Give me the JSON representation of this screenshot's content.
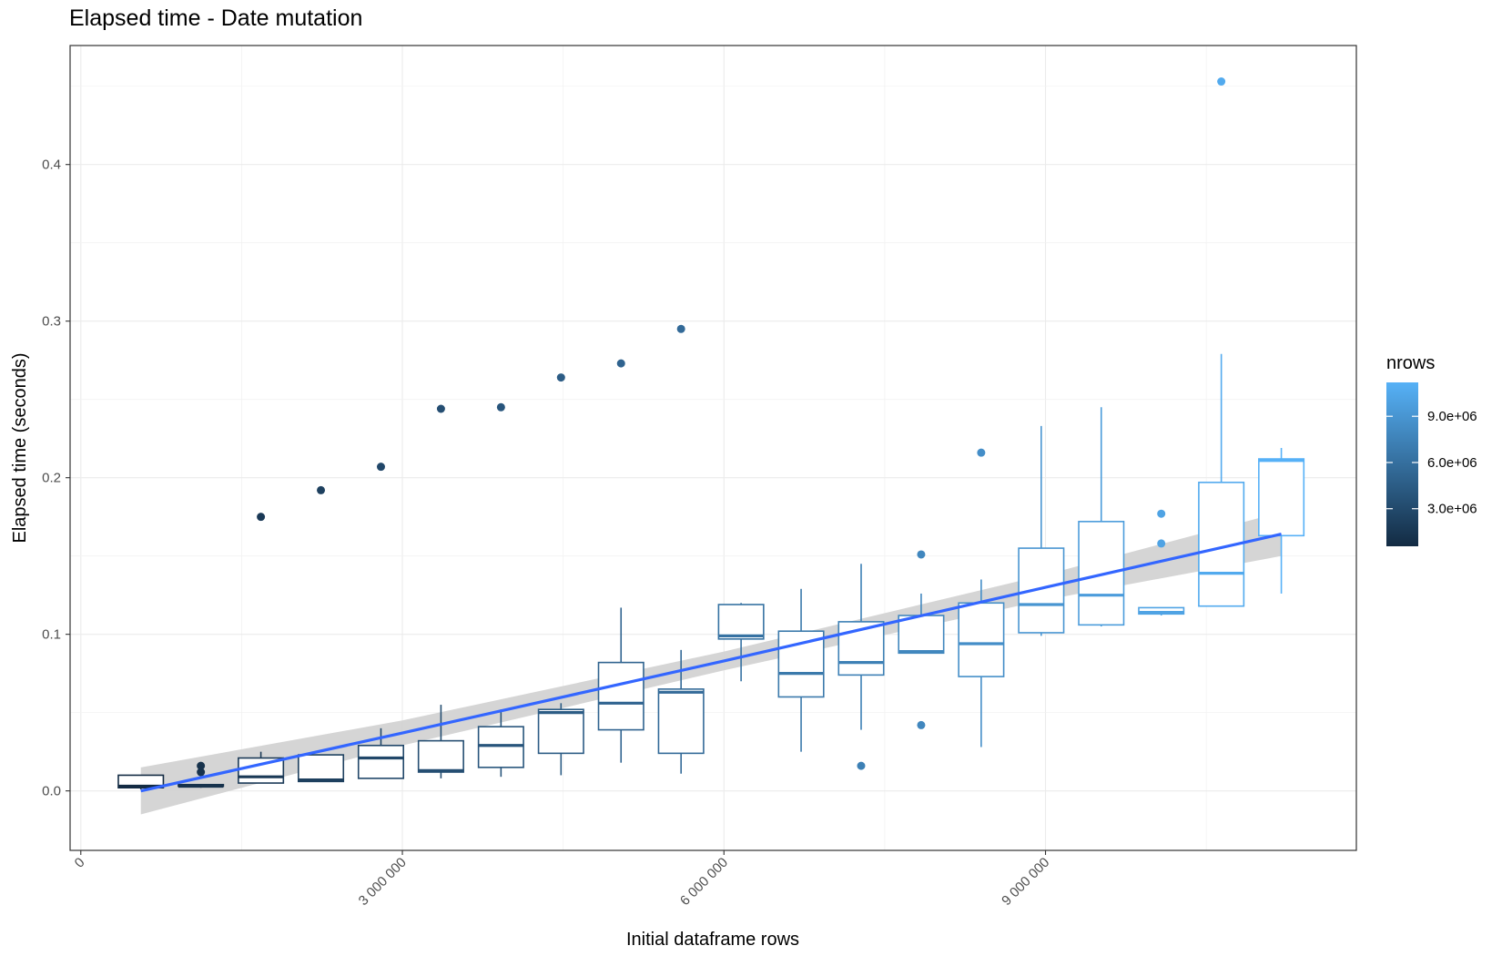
{
  "chart_data": {
    "type": "boxplot",
    "title": "Elapsed time - Date mutation",
    "xlabel": "Initial dataframe rows",
    "ylabel": "Elapsed time (seconds)",
    "xlim": [
      -100000,
      11900000
    ],
    "ylim": [
      -0.038,
      0.476
    ],
    "x_ticks": [
      0,
      3000000,
      6000000,
      9000000
    ],
    "x_tick_labels": [
      "0",
      "3 000 000",
      "6 000 000",
      "9 000 000"
    ],
    "y_ticks": [
      0.0,
      0.1,
      0.2,
      0.3,
      0.4
    ],
    "y_tick_labels": [
      "0.0",
      "0.1",
      "0.2",
      "0.3",
      "0.4"
    ],
    "grid": true,
    "legend": {
      "title": "nrows",
      "placement": "right",
      "type": "colorbar",
      "range": [
        560000,
        11200000
      ],
      "breaks": [
        3000000,
        6000000,
        9000000
      ],
      "labels": [
        "3.0e+06",
        "6.0e+06",
        "9.0e+06"
      ],
      "color_low": "#132b43",
      "color_high": "#56b1f7"
    },
    "boxes": [
      {
        "x": 560000,
        "lower_whisker": 0.001,
        "q1": 0.002,
        "median": 0.003,
        "q3": 0.01,
        "upper_whisker": 0.01,
        "outliers": []
      },
      {
        "x": 1120000,
        "lower_whisker": 0.002,
        "q1": 0.003,
        "median": 0.003,
        "q3": 0.004,
        "upper_whisker": 0.004,
        "outliers": [
          0.012,
          0.016
        ]
      },
      {
        "x": 1680000,
        "lower_whisker": 0.005,
        "q1": 0.005,
        "median": 0.009,
        "q3": 0.021,
        "upper_whisker": 0.025,
        "outliers": [
          0.175
        ]
      },
      {
        "x": 2240000,
        "lower_whisker": 0.006,
        "q1": 0.006,
        "median": 0.007,
        "q3": 0.023,
        "upper_whisker": 0.023,
        "outliers": [
          0.192
        ]
      },
      {
        "x": 2800000,
        "lower_whisker": 0.008,
        "q1": 0.008,
        "median": 0.021,
        "q3": 0.029,
        "upper_whisker": 0.04,
        "outliers": [
          0.207
        ]
      },
      {
        "x": 3360000,
        "lower_whisker": 0.008,
        "q1": 0.012,
        "median": 0.013,
        "q3": 0.032,
        "upper_whisker": 0.055,
        "outliers": [
          0.244
        ]
      },
      {
        "x": 3920000,
        "lower_whisker": 0.009,
        "q1": 0.015,
        "median": 0.029,
        "q3": 0.041,
        "upper_whisker": 0.052,
        "outliers": [
          0.245
        ]
      },
      {
        "x": 4480000,
        "lower_whisker": 0.01,
        "q1": 0.024,
        "median": 0.05,
        "q3": 0.052,
        "upper_whisker": 0.056,
        "outliers": [
          0.264
        ]
      },
      {
        "x": 5040000,
        "lower_whisker": 0.018,
        "q1": 0.039,
        "median": 0.056,
        "q3": 0.082,
        "upper_whisker": 0.117,
        "outliers": [
          0.273
        ]
      },
      {
        "x": 5600000,
        "lower_whisker": 0.011,
        "q1": 0.024,
        "median": 0.063,
        "q3": 0.065,
        "upper_whisker": 0.09,
        "outliers": [
          0.295
        ]
      },
      {
        "x": 6160000,
        "lower_whisker": 0.07,
        "q1": 0.097,
        "median": 0.099,
        "q3": 0.119,
        "upper_whisker": 0.12,
        "outliers": []
      },
      {
        "x": 6720000,
        "lower_whisker": 0.025,
        "q1": 0.06,
        "median": 0.075,
        "q3": 0.102,
        "upper_whisker": 0.129,
        "outliers": []
      },
      {
        "x": 7280000,
        "lower_whisker": 0.039,
        "q1": 0.074,
        "median": 0.082,
        "q3": 0.108,
        "upper_whisker": 0.145,
        "outliers": [
          0.016
        ]
      },
      {
        "x": 7840000,
        "lower_whisker": 0.088,
        "q1": 0.088,
        "median": 0.089,
        "q3": 0.112,
        "upper_whisker": 0.126,
        "outliers": [
          0.151,
          0.042
        ]
      },
      {
        "x": 8400000,
        "lower_whisker": 0.028,
        "q1": 0.073,
        "median": 0.094,
        "q3": 0.12,
        "upper_whisker": 0.135,
        "outliers": [
          0.216
        ]
      },
      {
        "x": 8960000,
        "lower_whisker": 0.099,
        "q1": 0.101,
        "median": 0.119,
        "q3": 0.155,
        "upper_whisker": 0.233,
        "outliers": []
      },
      {
        "x": 9520000,
        "lower_whisker": 0.105,
        "q1": 0.106,
        "median": 0.125,
        "q3": 0.172,
        "upper_whisker": 0.245,
        "outliers": []
      },
      {
        "x": 10080000,
        "lower_whisker": 0.112,
        "q1": 0.113,
        "median": 0.114,
        "q3": 0.117,
        "upper_whisker": 0.117,
        "outliers": [
          0.177,
          0.158
        ]
      },
      {
        "x": 10640000,
        "lower_whisker": 0.118,
        "q1": 0.118,
        "median": 0.139,
        "q3": 0.197,
        "upper_whisker": 0.279,
        "outliers": [
          0.453
        ]
      },
      {
        "x": 11200000,
        "lower_whisker": 0.126,
        "q1": 0.163,
        "median": 0.211,
        "q3": 0.212,
        "upper_whisker": 0.219,
        "outliers": []
      }
    ],
    "trend_line": {
      "method": "linear fit with confidence band",
      "color": "#3366ff",
      "band_color": "#d3d3d3",
      "points": [
        {
          "x": 560000,
          "y": 0.0,
          "lower": -0.015,
          "upper": 0.015
        },
        {
          "x": 3000000,
          "y": 0.037,
          "lower": 0.029,
          "upper": 0.045
        },
        {
          "x": 6000000,
          "y": 0.083,
          "lower": 0.077,
          "upper": 0.089
        },
        {
          "x": 9000000,
          "y": 0.13,
          "lower": 0.122,
          "upper": 0.138
        },
        {
          "x": 11200000,
          "y": 0.164,
          "lower": 0.15,
          "upper": 0.178
        }
      ]
    }
  }
}
